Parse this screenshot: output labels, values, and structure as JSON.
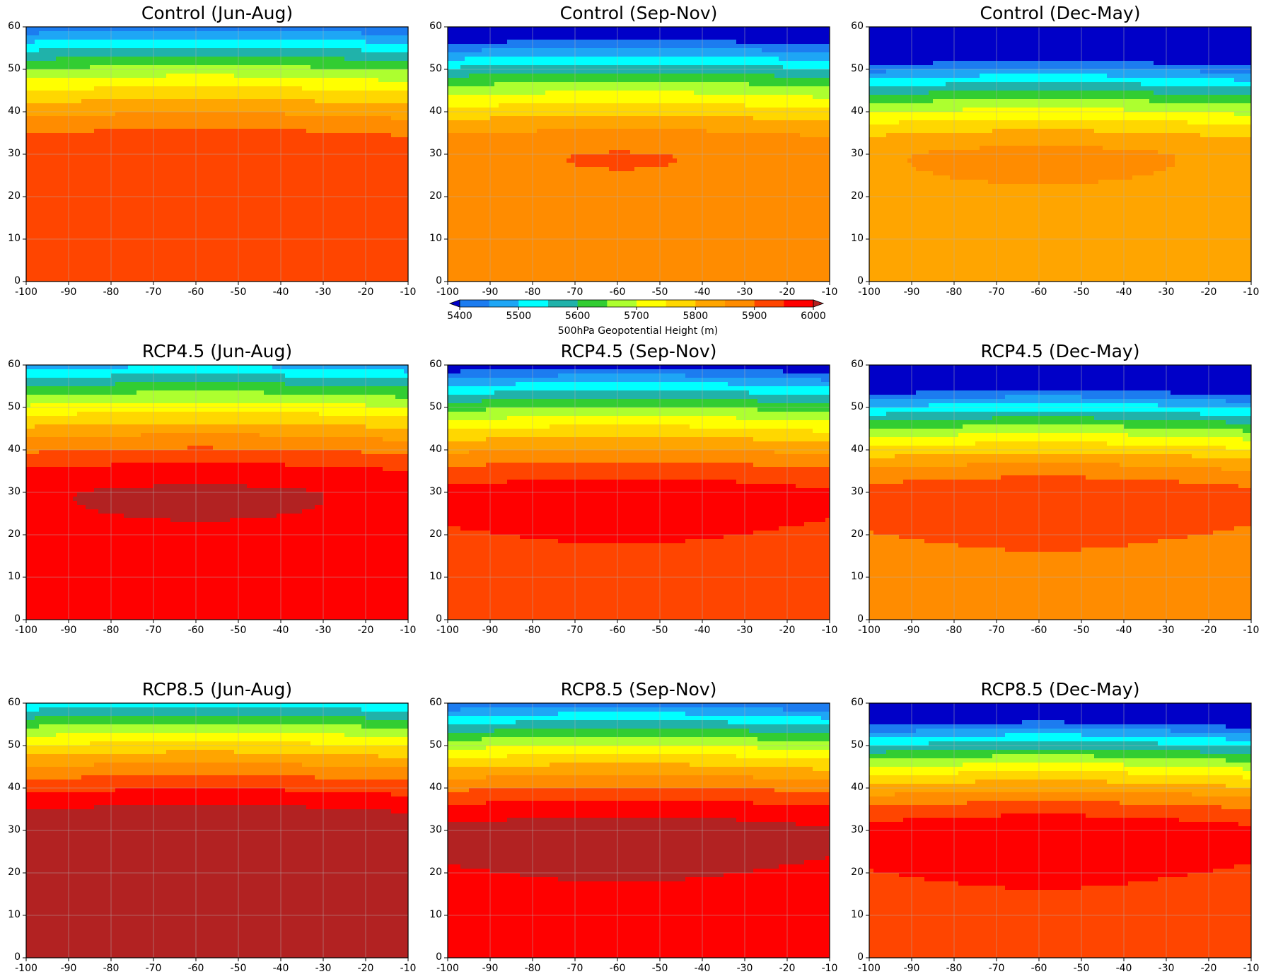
{
  "figure": {
    "colorbar": {
      "label": "500hPa Geopotential Height (m)",
      "levels": [
        5400,
        5450,
        5500,
        5550,
        5600,
        5650,
        5700,
        5750,
        5800,
        5850,
        5900,
        5950,
        6000
      ],
      "tick_labels": [
        "5400",
        "5500",
        "5600",
        "5700",
        "5800",
        "5900",
        "6000"
      ],
      "tick_values": [
        5400,
        5500,
        5600,
        5700,
        5800,
        5900,
        6000
      ],
      "colors": [
        "#0000c8",
        "#1c7cf0",
        "#1ea6f5",
        "#00ffff",
        "#20b2aa",
        "#32cd32",
        "#adff2f",
        "#ffff00",
        "#ffd700",
        "#ffa500",
        "#ff8c00",
        "#ff4500",
        "#ff0000",
        "#b22222"
      ],
      "extend": "both"
    },
    "axes": {
      "xlim": [
        -100,
        -10
      ],
      "ylim": [
        0,
        60
      ],
      "xticks": [
        -100,
        -90,
        -80,
        -70,
        -60,
        -50,
        -40,
        -30,
        -20,
        -10
      ],
      "yticks": [
        0,
        10,
        20,
        30,
        40,
        50,
        60
      ],
      "grid": true
    },
    "panels": [
      {
        "title": "Control (Jun-Aug)",
        "offset": 0,
        "scale": 1.0
      },
      {
        "title": "Control (Sep-Nov)",
        "offset": -50,
        "scale": 1.15
      },
      {
        "title": "Control (Dec-May)",
        "offset": -100,
        "scale": 1.45
      },
      {
        "title": "RCP4.5 (Jun-Aug)",
        "offset": 60,
        "scale": 1.0
      },
      {
        "title": "RCP4.5 (Sep-Nov)",
        "offset": 20,
        "scale": 1.15
      },
      {
        "title": "RCP4.5 (Dec-May)",
        "offset": -30,
        "scale": 1.45
      },
      {
        "title": "RCP8.5 (Jun-Aug)",
        "offset": 100,
        "scale": 1.0
      },
      {
        "title": "RCP8.5 (Sep-Nov)",
        "offset": 70,
        "scale": 1.15
      },
      {
        "title": "RCP8.5 (Dec-May)",
        "offset": 20,
        "scale": 1.45
      }
    ]
  }
}
